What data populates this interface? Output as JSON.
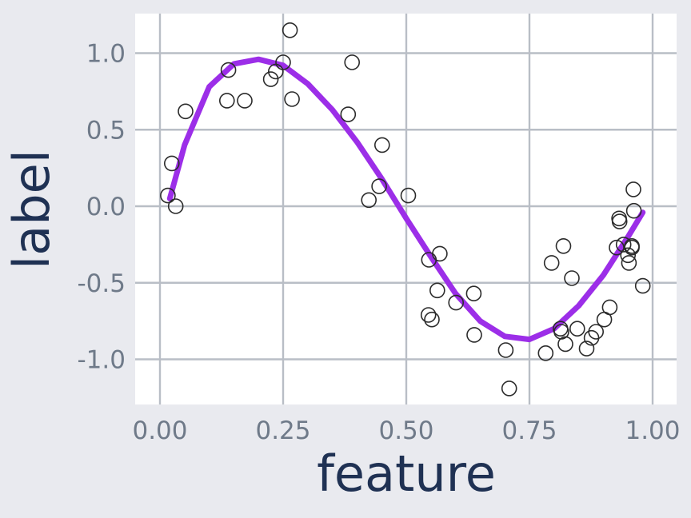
{
  "chart_data": {
    "type": "scatter",
    "title": "",
    "xlabel": "feature",
    "ylabel": "label",
    "xlim": [
      -0.1,
      1.1
    ],
    "ylim": [
      -1.3,
      1.25
    ],
    "grid": true,
    "x_ticks": [
      0.0,
      0.25,
      0.5,
      0.75,
      1.0
    ],
    "x_tick_labels": [
      "0.00",
      "0.25",
      "0.50",
      "0.75",
      "1.00"
    ],
    "y_ticks": [
      1.0,
      0.5,
      0.0,
      -0.5,
      -1.0
    ],
    "y_tick_labels": [
      "1.0",
      "0.5",
      "0.0",
      "-0.5",
      "-1.0"
    ],
    "colors": {
      "background": "#e9eaef",
      "panel": "#ffffff",
      "fit_line": "#9c2ee8",
      "points": "#2b2b2b"
    },
    "series": [
      {
        "type": "scatter",
        "marker": "open-circle",
        "x": [
          0.016,
          0.024,
          0.032,
          0.052,
          0.136,
          0.139,
          0.172,
          0.225,
          0.235,
          0.25,
          0.264,
          0.268,
          0.382,
          0.39,
          0.424,
          0.445,
          0.451,
          0.504,
          0.545,
          0.546,
          0.552,
          0.563,
          0.568,
          0.601,
          0.637,
          0.638,
          0.702,
          0.709,
          0.783,
          0.795,
          0.813,
          0.815,
          0.819,
          0.823,
          0.836,
          0.847,
          0.866,
          0.876,
          0.885,
          0.902,
          0.913,
          0.927,
          0.932,
          0.933,
          0.941,
          0.95,
          0.952,
          0.958,
          0.958,
          0.961,
          0.962,
          0.98
        ],
        "y": [
          0.07,
          0.28,
          0.0,
          0.62,
          0.69,
          0.89,
          0.69,
          0.83,
          0.88,
          0.94,
          1.15,
          0.7,
          0.6,
          0.94,
          0.04,
          0.13,
          0.4,
          0.07,
          -0.71,
          -0.35,
          -0.74,
          -0.55,
          -0.31,
          -0.63,
          -0.57,
          -0.84,
          -0.94,
          -1.19,
          -0.96,
          -0.37,
          -0.8,
          -0.82,
          -0.26,
          -0.9,
          -0.47,
          -0.8,
          -0.93,
          -0.86,
          -0.82,
          -0.74,
          -0.66,
          -0.27,
          -0.08,
          -0.1,
          -0.25,
          -0.32,
          -0.37,
          -0.26,
          -0.27,
          0.11,
          -0.03,
          -0.52
        ]
      },
      {
        "type": "line",
        "x": [
          0.02,
          0.05,
          0.1,
          0.15,
          0.2,
          0.25,
          0.3,
          0.35,
          0.4,
          0.45,
          0.5,
          0.55,
          0.6,
          0.65,
          0.7,
          0.75,
          0.8,
          0.85,
          0.9,
          0.95,
          0.98
        ],
        "y": [
          0.05,
          0.4,
          0.78,
          0.93,
          0.96,
          0.92,
          0.8,
          0.63,
          0.42,
          0.18,
          -0.08,
          -0.33,
          -0.57,
          -0.75,
          -0.85,
          -0.87,
          -0.8,
          -0.65,
          -0.45,
          -0.2,
          -0.04
        ]
      }
    ]
  }
}
